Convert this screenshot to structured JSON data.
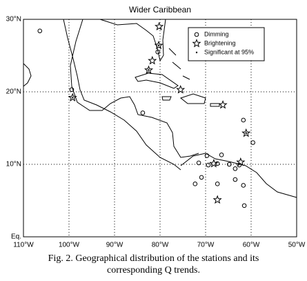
{
  "chart_data": {
    "type": "scatter",
    "title": "Wider Caribbean",
    "xlim": [
      -110,
      -50
    ],
    "ylim": [
      0,
      30
    ],
    "xticks": [
      {
        "value": -110,
        "label": "110°W"
      },
      {
        "value": -100,
        "label": "100°W"
      },
      {
        "value": -90,
        "label": "90°W"
      },
      {
        "value": -80,
        "label": "80°W"
      },
      {
        "value": -70,
        "label": "70°W"
      },
      {
        "value": -60,
        "label": "60°W"
      },
      {
        "value": -50,
        "label": "50°W"
      }
    ],
    "yticks": [
      {
        "value": 0,
        "label": "Eq."
      },
      {
        "value": 10,
        "label": "10°N"
      },
      {
        "value": 20,
        "label": "20°N"
      },
      {
        "value": 30,
        "label": "30°N"
      }
    ],
    "grid": true,
    "legend": "upper right",
    "series": [
      {
        "name": "Dimming",
        "marker": "circle",
        "color": "#000000",
        "x": [
          -106.4,
          -99.4,
          -80.5,
          -83.8,
          -61.7,
          -59.6,
          -69.7,
          -66.5,
          -69.4,
          -71.5,
          -70.9,
          -72.3,
          -64.8,
          -63.5,
          -63.5,
          -67.4,
          -61.7,
          -61.5,
          -62.6,
          -67.4
        ],
        "values": [
          28.4,
          20.3,
          25.5,
          17.1,
          16.1,
          13.0,
          11.2,
          11.3,
          9.9,
          10.2,
          8.2,
          7.3,
          10.0,
          9.4,
          7.9,
          7.3,
          7.1,
          4.3,
          9.9,
          10.1
        ]
      },
      {
        "name": "Brightening",
        "marker": "star",
        "color": "#000000",
        "x": [
          -80.2,
          -80.3,
          -81.7,
          -82.5,
          -99.2,
          -75.5,
          -66.2,
          -61.1,
          -68.2,
          -62.3,
          -67.4
        ],
        "values": [
          29.0,
          26.4,
          24.3,
          23.0,
          19.2,
          20.3,
          18.2,
          14.3,
          10.1,
          10.3,
          5.1
        ]
      },
      {
        "name": "Significant at 95%",
        "marker": "dot",
        "color": "#000000",
        "x": [
          -80.3,
          -99.2,
          -61.1,
          -82.5
        ],
        "values": [
          26.4,
          19.2,
          14.3,
          23.0
        ]
      }
    ]
  },
  "caption": "Fig. 2. Geographical distribution of the stations and its corresponding Q trends."
}
